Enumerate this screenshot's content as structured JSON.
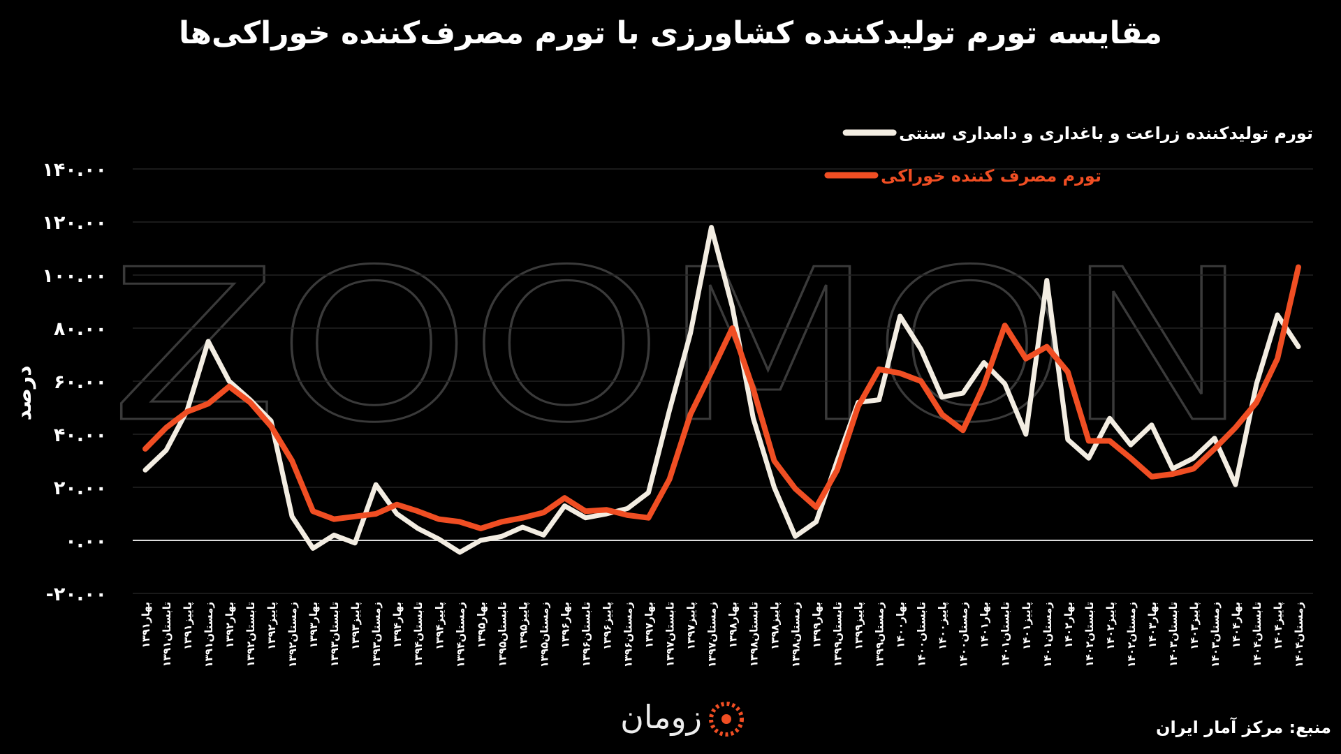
{
  "chart_data": {
    "type": "line",
    "title": "مقایسه تورم تولیدکننده کشاورزی با تورم مصرف‌کننده خوراکی‌ها",
    "y_label": "درصد",
    "source": "منبع: مرکز آمار ایران",
    "logo": "زومان",
    "watermark": "ZOOMON",
    "legend_position": "upper right",
    "categories": [
      "بهار۱۳۹۱",
      "تابستان۱۳۹۱",
      "پاییز۱۳۹۱",
      "زمستان۱۳۹۱",
      "بهار۱۳۹۲",
      "تابستان۱۳۹۲",
      "پاییز۱۳۹۲",
      "زمستان۱۳۹۲",
      "بهار۱۳۹۳",
      "تابستان۱۳۹۳",
      "پاییز۱۳۹۳",
      "زمستان۱۳۹۳",
      "بهار۱۳۹۴",
      "تابستان۱۳۹۴",
      "پاییز۱۳۹۴",
      "زمستان۱۳۹۴",
      "بهار۱۳۹۵",
      "تابستان۱۳۹۵",
      "پاییز۱۳۹۵",
      "زمستان۱۳۹۵",
      "بهار۱۳۹۶",
      "تابستان۱۳۹۶",
      "پاییز۱۳۹۶",
      "زمستان۱۳۹۶",
      "بهار۱۳۹۷",
      "تابستان۱۳۹۷",
      "پاییز۱۳۹۷",
      "زمستان۱۳۹۷",
      "بهار۱۳۹۸",
      "تابستان۱۳۹۸",
      "پاییز۱۳۹۸",
      "زمستان۱۳۹۸",
      "بهار۱۳۹۹",
      "تابستان۱۳۹۹",
      "پاییز۱۳۹۹",
      "زمستان۱۳۹۹",
      "بهار۱۴۰۰",
      "تابستان۱۴۰۰",
      "پاییز۱۴۰۰",
      "زمستان۱۴۰۰",
      "بهار۱۴۰۱",
      "تابستان۱۴۰۱",
      "پاییز۱۴۰۱",
      "زمستان۱۴۰۱",
      "بهار۱۴۰۲",
      "تابستان۱۴۰۲",
      "پاییز۱۴۰۲",
      "زمستان۱۴۰۲",
      "بهار۱۴۰۳",
      "تابستان۱۴۰۳",
      "پاییز۱۴۰۳",
      "زمستان۱۴۰۳",
      "بهار۱۴۰۴",
      "تابستان۱۴۰۴",
      "پاییز۱۴۰۴",
      "زمستان۱۴۰۴"
    ],
    "series": [
      {
        "name": "تورم تولیدکننده زراعت و باغداری و دامداری سنتی",
        "color": "#f3ede2",
        "values": [
          26.5,
          34,
          49,
          75,
          60,
          53,
          45,
          9,
          -3,
          2,
          -1,
          21,
          10,
          4.5,
          0.5,
          -4.5,
          0,
          1.5,
          5,
          2,
          13,
          8.5,
          10,
          12,
          18,
          49,
          78,
          118,
          88,
          46,
          20,
          1.5,
          7,
          30,
          52,
          53,
          84.5,
          72,
          54,
          55.5,
          67,
          59,
          40,
          98,
          38,
          31,
          46,
          36,
          43.5,
          27,
          31,
          38.5,
          21,
          59,
          85,
          73
        ]
      },
      {
        "name": "تورم مصرف کننده خوراکی",
        "color": "#f04e23",
        "values": [
          34.5,
          42.5,
          48.5,
          51.5,
          58,
          52,
          43,
          30,
          11,
          8,
          9,
          10,
          13.5,
          11,
          8,
          7,
          4.5,
          7,
          8.5,
          10.5,
          16,
          11,
          11.5,
          9.5,
          8.5,
          23,
          47.5,
          63.5,
          80,
          57,
          30,
          19.5,
          12.5,
          26.5,
          50.5,
          64.5,
          63,
          60,
          47.5,
          41.5,
          58.5,
          81,
          68.5,
          73,
          63.5,
          37.5,
          37.5,
          31,
          24,
          25,
          27,
          34.5,
          42.5,
          52,
          68.5,
          103
        ]
      }
    ],
    "ylim": [
      -20,
      140
    ],
    "yticks": [
      {
        "value": -20,
        "label": "-۲۰.۰۰"
      },
      {
        "value": 0,
        "label": "۰.۰۰"
      },
      {
        "value": 20,
        "label": "۲۰.۰۰"
      },
      {
        "value": 40,
        "label": "۴۰.۰۰"
      },
      {
        "value": 60,
        "label": "۶۰.۰۰"
      },
      {
        "value": 80,
        "label": "۸۰.۰۰"
      },
      {
        "value": 100,
        "label": "۱۰۰.۰۰"
      },
      {
        "value": 120,
        "label": "۱۲۰.۰۰"
      },
      {
        "value": 140,
        "label": "۱۴۰.۰۰"
      }
    ],
    "grid": true
  }
}
